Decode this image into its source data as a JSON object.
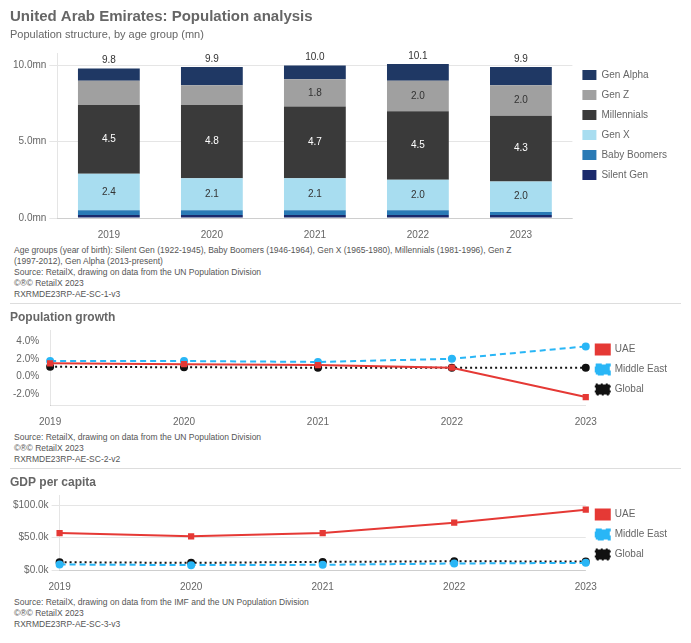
{
  "chart_data": [
    {
      "type": "bar",
      "title": "United Arab Emirates: Population analysis",
      "subtitle": "Population structure, by age group (mn)",
      "categories": [
        "2019",
        "2020",
        "2021",
        "2022",
        "2023"
      ],
      "stacked": true,
      "series": [
        {
          "name": "Silent Gen",
          "color": "#1a2a6c",
          "values": [
            0.2,
            0.2,
            0.2,
            0.2,
            0.2
          ]
        },
        {
          "name": "Baby Boomers",
          "color": "#2a7ab5",
          "values": [
            0.3,
            0.3,
            0.3,
            0.3,
            0.2
          ]
        },
        {
          "name": "Gen X",
          "color": "#a8ddf0",
          "values": [
            2.4,
            2.1,
            2.1,
            2.0,
            2.0
          ],
          "data_labels": true,
          "value_labels": [
            "2.4",
            "2.1",
            "2.1",
            "2.0",
            "2.0"
          ]
        },
        {
          "name": "Millennials",
          "color": "#3a3a3a",
          "values": [
            4.5,
            4.8,
            4.7,
            4.5,
            4.3
          ],
          "data_labels": true,
          "value_labels": [
            "4.5",
            "4.8",
            "4.7",
            "4.5",
            "4.3"
          ]
        },
        {
          "name": "Gen Z",
          "color": "#a0a0a0",
          "values": [
            1.6,
            1.3,
            1.8,
            2.0,
            2.0
          ],
          "data_labels": true,
          "value_labels": [
            null,
            null,
            "1.8",
            "2.0",
            "2.0"
          ]
        },
        {
          "name": "Gen Alpha",
          "color": "#1f3864",
          "values": [
            0.8,
            1.2,
            0.9,
            1.1,
            1.2
          ]
        }
      ],
      "totals": [
        9.8,
        9.9,
        10.0,
        10.1,
        9.9
      ],
      "total_labels": [
        "9.8",
        "9.9",
        "10.0",
        "10.1",
        "9.9"
      ],
      "ylim": [
        0,
        10.8
      ],
      "yticks": [
        {
          "value": 0,
          "label": "0.0mn"
        },
        {
          "value": 5,
          "label": "5.0mn"
        },
        {
          "value": 10,
          "label": "10.0mn"
        }
      ],
      "grid": true,
      "legend": "right",
      "annotations": [
        "Age groups (year of birth): Silent Gen (1922-1945), Baby Boomers (1946-1964), Gen X (1965-1980), Millennials (1981-1996), Gen Z",
        "(1997-2012), Gen Alpha (2013-present)",
        "Source: RetailX, drawing on data from the UN Population Division",
        "©®©  RetailX 2023",
        "RXRMDE23RP-AE-SC-1-v3"
      ]
    },
    {
      "type": "line",
      "title": "Population growth",
      "categories": [
        "2019",
        "2020",
        "2021",
        "2022",
        "2023"
      ],
      "series": [
        {
          "name": "UAE",
          "color": "#e53935",
          "marker": "square",
          "line_style": "solid",
          "values": [
            1.5,
            1.4,
            1.3,
            1.0,
            -2.3
          ]
        },
        {
          "name": "Middle East",
          "color": "#29b6f6",
          "marker": "circle",
          "line_style": "dashed",
          "values": [
            1.75,
            1.75,
            1.65,
            2.0,
            3.4
          ]
        },
        {
          "name": "Global",
          "color": "#111111",
          "marker": "circle",
          "line_style": "dotted",
          "values": [
            1.1,
            1.05,
            1.0,
            1.0,
            1.0
          ]
        }
      ],
      "ylim": [
        -3.2,
        5.2
      ],
      "yticks": [
        {
          "value": -2,
          "label": "-2.0%"
        },
        {
          "value": 0,
          "label": "0.0%"
        },
        {
          "value": 2,
          "label": "2.0%"
        },
        {
          "value": 4,
          "label": "4.0%"
        }
      ],
      "grid": false,
      "legend": "right",
      "annotations": [
        "Source: RetailX, drawing on data from the UN Population Division",
        "©®©  RetailX 2023",
        "RXRMDE23RP-AE-SC-2-v2"
      ]
    },
    {
      "type": "line",
      "title": "GDP per capita",
      "categories": [
        "2019",
        "2020",
        "2021",
        "2022",
        "2023"
      ],
      "series": [
        {
          "name": "UAE",
          "color": "#e53935",
          "marker": "square",
          "line_style": "solid",
          "values": [
            57000,
            52000,
            57000,
            73000,
            93000
          ]
        },
        {
          "name": "Middle East",
          "color": "#29b6f6",
          "marker": "circle",
          "line_style": "dashed",
          "values": [
            8500,
            7500,
            8000,
            10000,
            11000
          ]
        },
        {
          "name": "Global",
          "color": "#111111",
          "marker": "circle",
          "line_style": "dotted",
          "values": [
            12000,
            11000,
            12500,
            13500,
            13000
          ]
        }
      ],
      "ylim": [
        0,
        115000
      ],
      "yticks": [
        {
          "value": 0,
          "label": "$0.0k"
        },
        {
          "value": 50000,
          "label": "$50.0k"
        },
        {
          "value": 100000,
          "label": "$100.0k"
        }
      ],
      "grid": true,
      "legend": "right",
      "annotations": [
        "Source: RetailX, drawing on data from the IMF and the UN Population Division",
        "©®©  RetailX 2023",
        "RXRMDE23RP-AE-SC-3-v3"
      ]
    }
  ]
}
